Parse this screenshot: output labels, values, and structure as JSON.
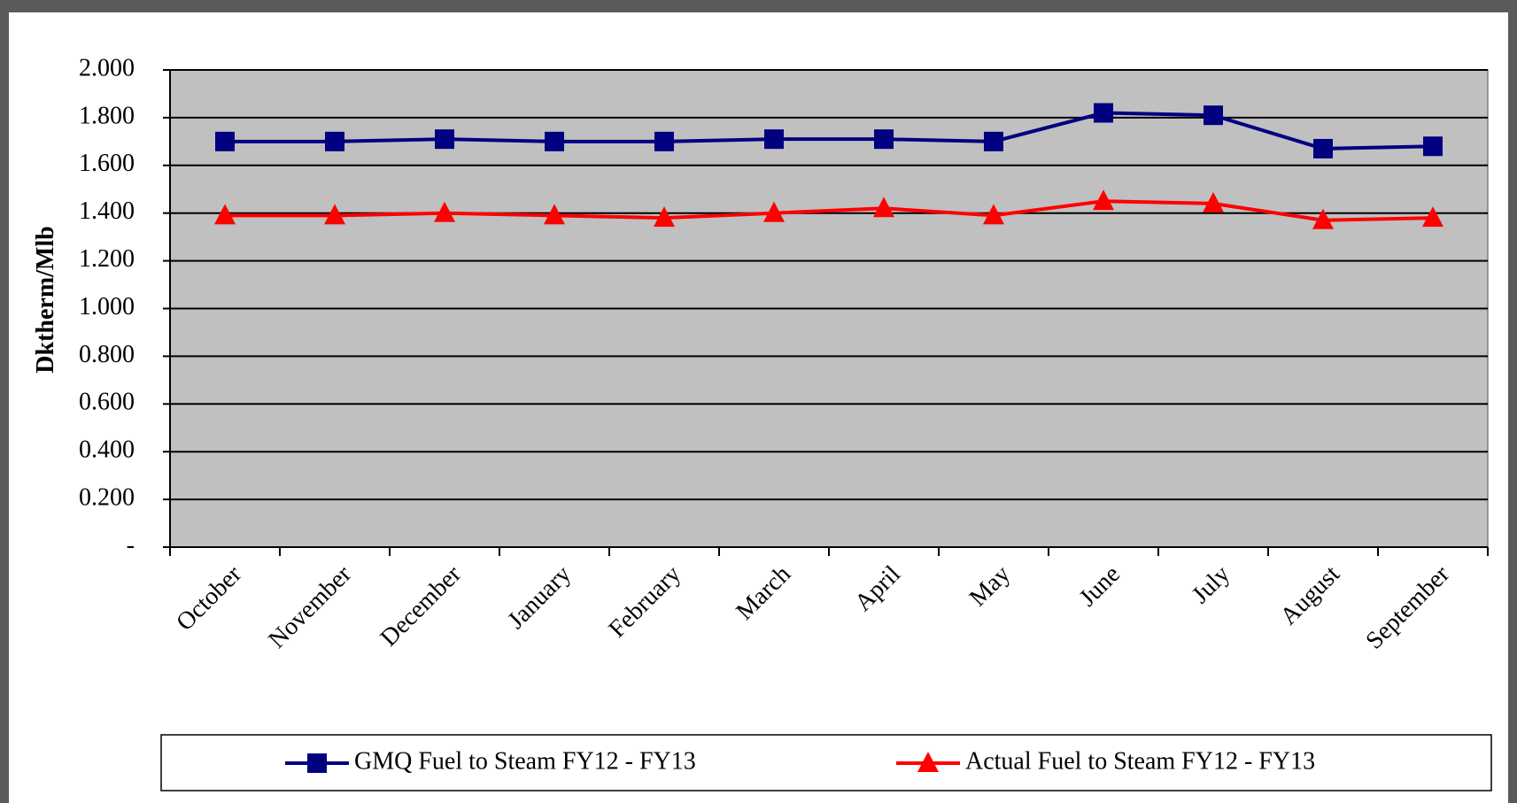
{
  "chart_data": {
    "type": "line",
    "y_label": "Dktherm/Mlb",
    "categories": [
      "October",
      "November",
      "December",
      "January",
      "February",
      "March",
      "April",
      "May",
      "June",
      "July",
      "August",
      "September"
    ],
    "series": [
      {
        "name": "GMQ Fuel to Steam  FY12 - FY13",
        "color": "#000080",
        "marker": "square",
        "values": [
          1.7,
          1.7,
          1.71,
          1.7,
          1.7,
          1.71,
          1.71,
          1.7,
          1.82,
          1.81,
          1.67,
          1.68
        ]
      },
      {
        "name": "Actual Fuel to Steam  FY12 - FY13",
        "color": "#ff0000",
        "marker": "triangle",
        "values": [
          1.39,
          1.39,
          1.4,
          1.39,
          1.38,
          1.4,
          1.42,
          1.39,
          1.45,
          1.44,
          1.37,
          1.38
        ]
      }
    ],
    "ylim": [
      0,
      2
    ],
    "yticks": [
      {
        "value": 0,
        "label": "-"
      },
      {
        "value": 0.2,
        "label": "0.200"
      },
      {
        "value": 0.4,
        "label": "0.400"
      },
      {
        "value": 0.6,
        "label": "0.600"
      },
      {
        "value": 0.8,
        "label": "0.800"
      },
      {
        "value": 1,
        "label": "1.000"
      },
      {
        "value": 1.2,
        "label": "1.200"
      },
      {
        "value": 1.4,
        "label": "1.400"
      },
      {
        "value": 1.6,
        "label": "1.600"
      },
      {
        "value": 1.8,
        "label": "1.800"
      },
      {
        "value": 2,
        "label": "2.000"
      }
    ],
    "grid": true,
    "plot_background": "#c0c0c0",
    "legend": "bottom"
  }
}
